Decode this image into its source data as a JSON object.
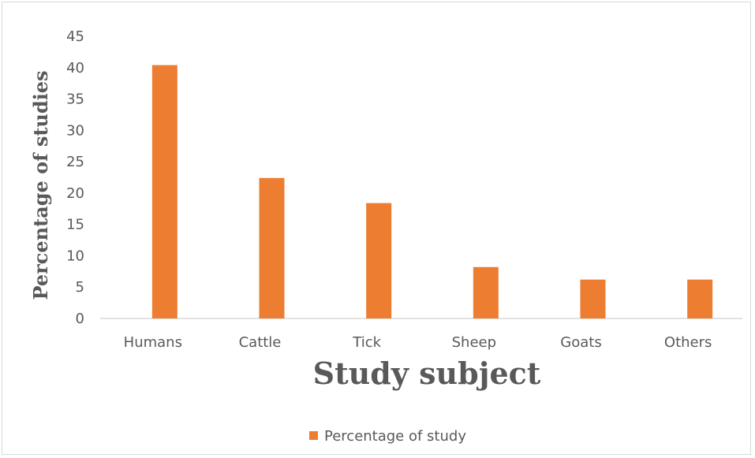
{
  "chart_data": {
    "type": "bar",
    "title": "",
    "xlabel": "Study subject",
    "ylabel": "Percentage of studies",
    "categories": [
      "Humans",
      "Cattle",
      "Tick",
      "Sheep",
      "Goats",
      "Others"
    ],
    "series": [
      {
        "name": "Percentage of study",
        "values": [
          40.4,
          22.4,
          18.4,
          8.2,
          6.2,
          6.2
        ],
        "color": "#ED7D31"
      }
    ],
    "ylim": [
      0,
      45
    ],
    "yticks": [
      "0",
      "5",
      "10",
      "15",
      "20",
      "25",
      "30",
      "35",
      "40",
      "45"
    ],
    "grid": false,
    "legend_position": "bottom"
  }
}
